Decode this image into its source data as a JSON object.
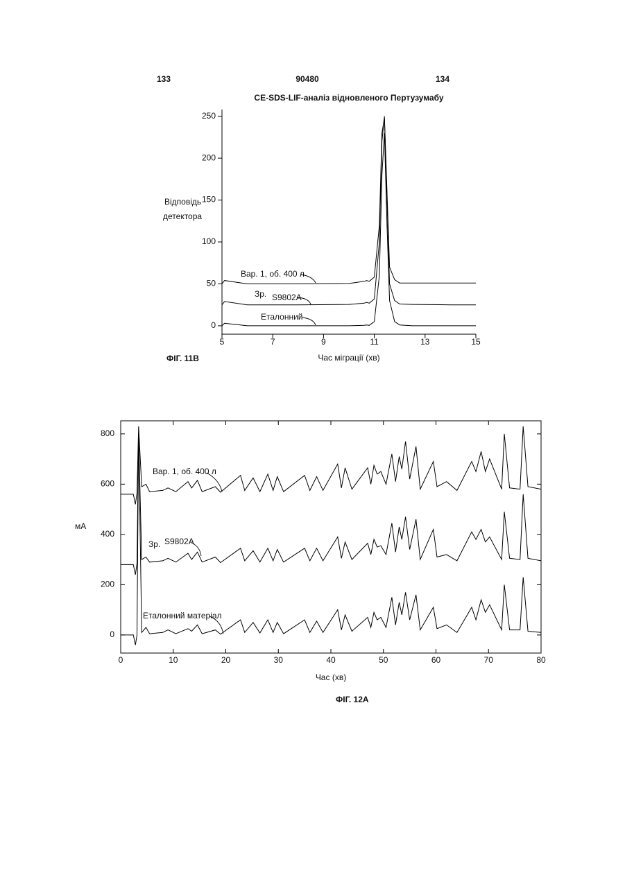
{
  "header": {
    "left": "133",
    "center": "90480",
    "right": "134"
  },
  "chart_data": [
    {
      "type": "line",
      "title": "CE-SDS-LIF-аналіз відновленого Пертузумабу",
      "y_label": [
        "Відповідь",
        "детектора"
      ],
      "x_label": "Час міграції (хв)",
      "figure_label": "ФІГ. 11В",
      "xlim": [
        5,
        15
      ],
      "xticks": [
        5,
        7,
        9,
        11,
        13,
        15
      ],
      "ylim": [
        -10,
        258
      ],
      "yticks": [
        0,
        50,
        100,
        150,
        200,
        250
      ],
      "x": [
        5,
        5.1,
        6,
        8,
        10,
        10.6,
        10.7,
        10.8,
        11,
        11.2,
        11.3,
        11.4,
        11.5,
        11.6,
        11.8,
        12,
        12.5,
        14,
        15
      ],
      "series": [
        {
          "name": "Еталонний",
          "color": "#000000",
          "values": [
            0,
            3,
            0,
            0,
            0,
            0.5,
            1,
            0.5,
            5,
            60,
            180,
            230,
            120,
            30,
            5,
            1,
            0,
            0,
            0
          ]
        },
        {
          "name": "S9802A",
          "color": "#000000",
          "values": [
            25,
            29,
            25,
            25,
            25.5,
            27,
            28,
            27,
            32,
            100,
            220,
            250,
            150,
            50,
            30,
            26,
            25.5,
            25,
            25
          ]
        },
        {
          "name": "Вар. 1, об. 400 л",
          "color": "#000000",
          "values": [
            50,
            54,
            50,
            50,
            50.5,
            53,
            54,
            53,
            58,
            120,
            230,
            248,
            160,
            70,
            55,
            51,
            51,
            51,
            51
          ]
        }
      ],
      "annotations": [
        "Зр."
      ]
    },
    {
      "type": "line",
      "y_label": [
        "мА"
      ],
      "x_label": "Час (хв)",
      "figure_label": "ФІГ. 12А",
      "xlim": [
        0,
        80
      ],
      "xticks": [
        0,
        10,
        20,
        30,
        40,
        50,
        60,
        70,
        80
      ],
      "ylim": [
        -72,
        852
      ],
      "yticks": [
        0,
        200,
        400,
        600,
        800
      ],
      "x": [
        0,
        2.4,
        2.8,
        3.1,
        3.4,
        4,
        4.8,
        5.5,
        8,
        9,
        10.5,
        12.8,
        13.5,
        14.6,
        15.5,
        18,
        19,
        22.8,
        23.6,
        25.2,
        26.5,
        28,
        29,
        29.8,
        31,
        35,
        36,
        37.3,
        38.5,
        41.3,
        42,
        42.7,
        44,
        47,
        47.6,
        48.2,
        48.8,
        49.5,
        50.5,
        51.6,
        52.3,
        53,
        53.5,
        54.2,
        55,
        56.2,
        57,
        59.5,
        60.2,
        62,
        64,
        66.8,
        67.6,
        68.6,
        69.4,
        70.2,
        72.5,
        73,
        74,
        76,
        76.6,
        77.5,
        80
      ],
      "series": [
        {
          "name": "Еталонний матеріал",
          "color": "#000000",
          "values": [
            0,
            0,
            -40,
            0,
            800,
            10,
            30,
            5,
            10,
            20,
            5,
            25,
            15,
            40,
            5,
            20,
            3,
            60,
            10,
            50,
            8,
            60,
            10,
            50,
            5,
            60,
            10,
            55,
            10,
            100,
            20,
            80,
            15,
            70,
            30,
            90,
            60,
            70,
            30,
            150,
            40,
            130,
            80,
            170,
            60,
            160,
            20,
            110,
            25,
            40,
            10,
            110,
            60,
            140,
            90,
            120,
            20,
            200,
            20,
            20,
            230,
            15,
            10
          ]
        },
        {
          "name": "S9802A",
          "color": "#000000",
          "values": [
            280,
            280,
            240,
            285,
            800,
            300,
            310,
            290,
            295,
            305,
            290,
            325,
            300,
            330,
            290,
            310,
            288,
            345,
            295,
            335,
            290,
            345,
            295,
            340,
            290,
            345,
            295,
            345,
            295,
            390,
            305,
            370,
            300,
            365,
            320,
            380,
            350,
            355,
            320,
            445,
            330,
            430,
            380,
            470,
            340,
            460,
            300,
            420,
            310,
            320,
            295,
            410,
            380,
            420,
            370,
            390,
            300,
            490,
            305,
            300,
            560,
            305,
            295
          ]
        },
        {
          "name": "Вар. 1, об. 400 л",
          "color": "#000000",
          "values": [
            560,
            560,
            520,
            565,
            830,
            590,
            600,
            570,
            575,
            585,
            570,
            610,
            585,
            615,
            570,
            590,
            568,
            635,
            575,
            625,
            570,
            640,
            575,
            630,
            570,
            635,
            575,
            630,
            575,
            680,
            585,
            665,
            580,
            665,
            600,
            675,
            640,
            650,
            600,
            720,
            610,
            710,
            660,
            770,
            620,
            750,
            580,
            690,
            590,
            610,
            575,
            690,
            650,
            730,
            650,
            700,
            580,
            800,
            585,
            580,
            830,
            590,
            580
          ]
        }
      ],
      "annotations": [
        "Зр."
      ]
    }
  ]
}
